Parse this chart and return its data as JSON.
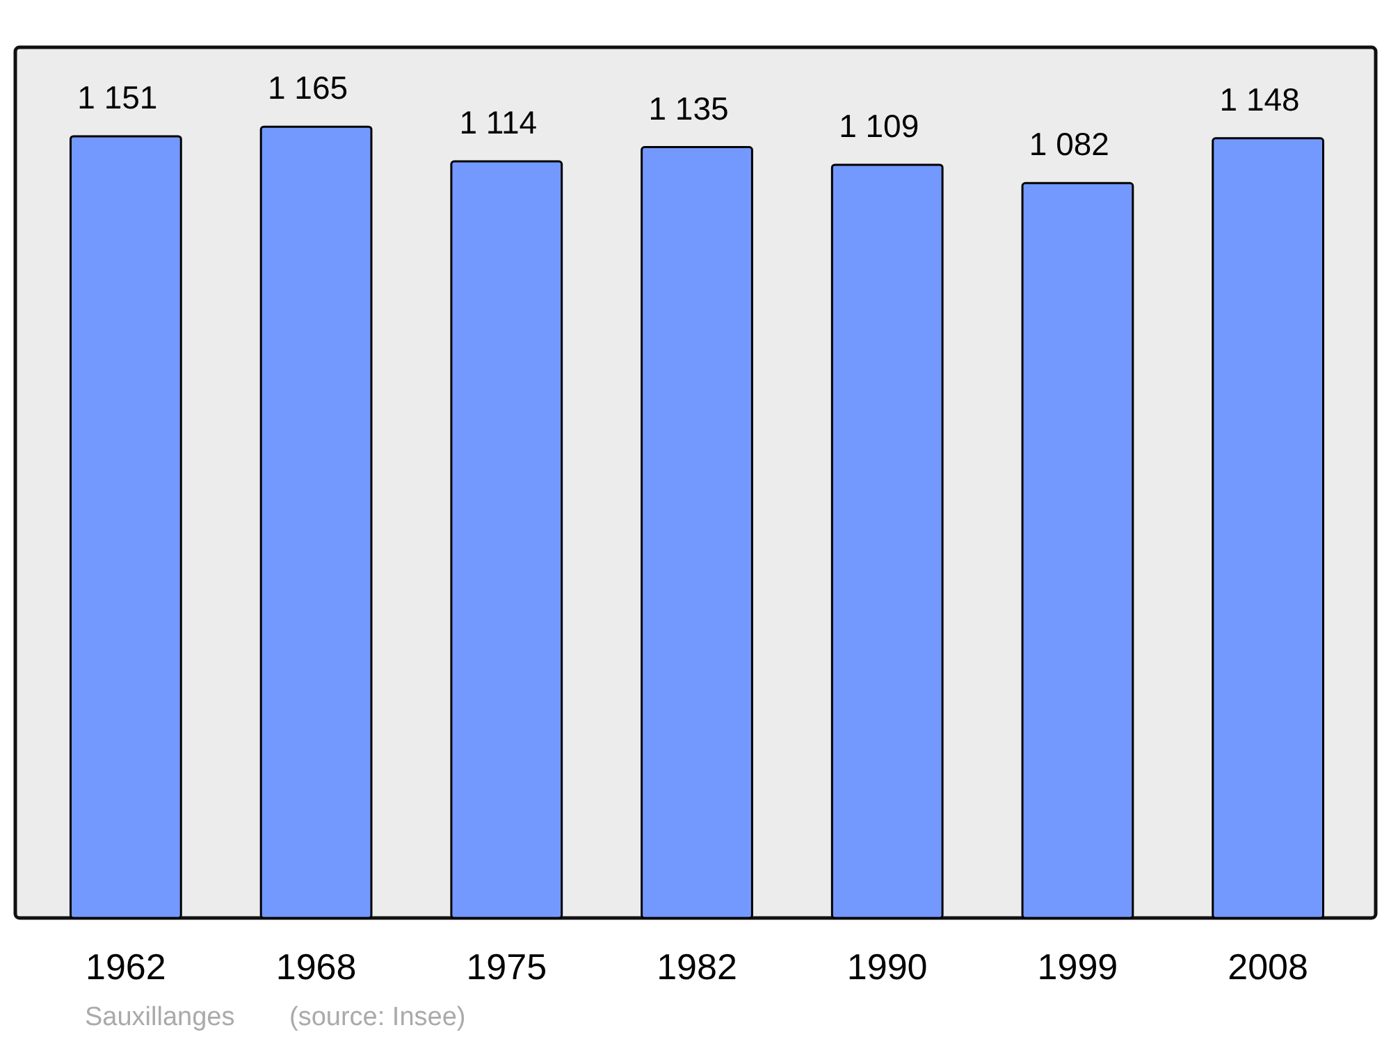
{
  "chart_data": {
    "type": "bar",
    "categories": [
      "1962",
      "1968",
      "1975",
      "1982",
      "1990",
      "1999",
      "2008"
    ],
    "values": [
      1151,
      1165,
      1114,
      1135,
      1109,
      1082,
      1148
    ],
    "value_labels": [
      "1 151",
      "1 165",
      "1 114",
      "1 135",
      "1 109",
      "1 082",
      "1 148"
    ],
    "color": "#7399ff",
    "ylim": [
      0,
      1282
    ],
    "annotations": [
      "Sauxillanges",
      "(source: Insee)"
    ]
  }
}
